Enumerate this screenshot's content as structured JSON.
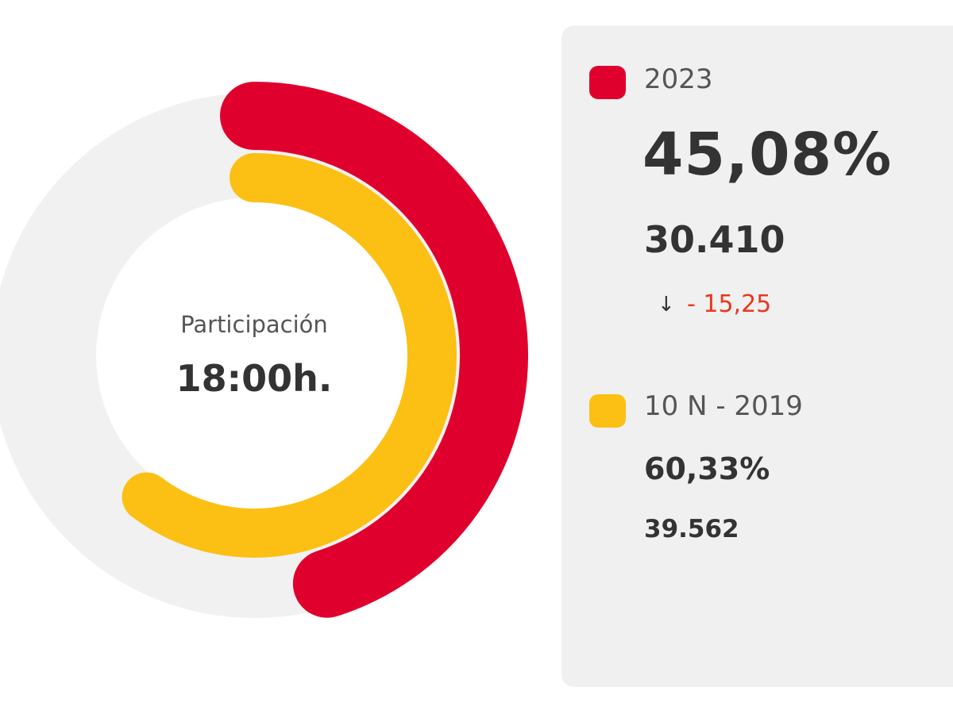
{
  "colors": {
    "current": "#e0002d",
    "previous": "#fbc013",
    "track": "#f1f1f1",
    "panel": "#f0f0f0",
    "delta_negative": "#e8381f"
  },
  "center": {
    "title": "Participación",
    "time": "18:00h."
  },
  "legend": {
    "current": {
      "label": "2023",
      "percent": "45,08%",
      "votes": "30.410",
      "delta_icon": "arrow-down-icon",
      "delta_arrow": "↓",
      "delta": "- 15,25"
    },
    "previous": {
      "label": "10 N - 2019",
      "percent": "60,33%",
      "votes": "39.562"
    }
  },
  "chart_data": {
    "type": "radial-bar",
    "title": "Participación 18:00h.",
    "series": [
      {
        "name": "2023",
        "value": 45.08,
        "votes": 30410
      },
      {
        "name": "10 N - 2019",
        "value": 60.33,
        "votes": 39562
      }
    ],
    "ylim": [
      0,
      100
    ],
    "unit": "%"
  }
}
